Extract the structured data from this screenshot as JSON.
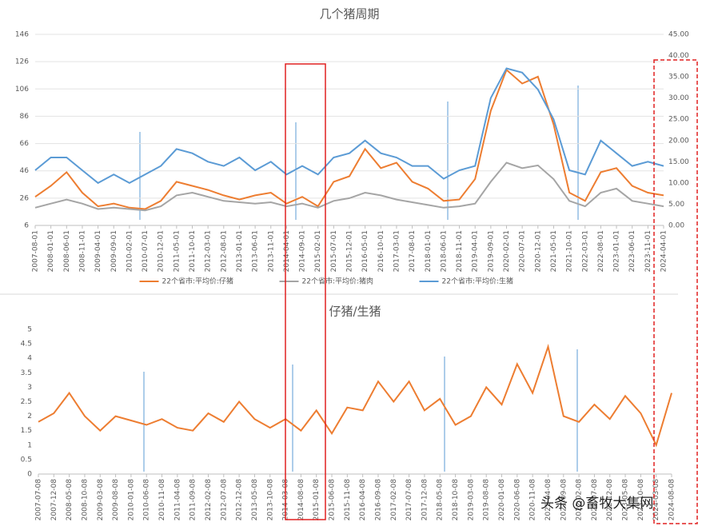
{
  "chart_data": [
    {
      "type": "line",
      "title": "几个猪周期",
      "categories": [
        "2007-08-01",
        "2008-01-01",
        "2008-06-01",
        "2008-11-01",
        "2009-04-01",
        "2009-09-01",
        "2010-02-01",
        "2010-07-01",
        "2010-12-01",
        "2011-05-01",
        "2011-10-01",
        "2012-03-01",
        "2012-08-01",
        "2013-01-01",
        "2013-06-01",
        "2013-11-01",
        "2014-04-01",
        "2014-09-01",
        "2015-02-01",
        "2015-07-01",
        "2015-12-01",
        "2016-05-01",
        "2016-10-01",
        "2017-03-01",
        "2017-08-01",
        "2018-01-01",
        "2018-06-01",
        "2018-11-01",
        "2019-04-01",
        "2019-09-01",
        "2020-02-01",
        "2020-07-01",
        "2020-12-01",
        "2021-05-01",
        "2021-10-01",
        "2022-03-01",
        "2022-08-01",
        "2023-01-01",
        "2023-06-01",
        "2023-11-01",
        "2024-04-01"
      ],
      "series": [
        {
          "name": "22个省市:平均价:仔猪",
          "color": "#ed7d31",
          "values": [
            27,
            35,
            45,
            30,
            20,
            22,
            19,
            18,
            24,
            38,
            35,
            32,
            28,
            25,
            28,
            30,
            22,
            27,
            20,
            38,
            42,
            62,
            48,
            52,
            38,
            33,
            24,
            25,
            40,
            90,
            120,
            110,
            115,
            80,
            30,
            24,
            45,
            48,
            35,
            30,
            28
          ]
        },
        {
          "name": "22个省市:平均价:猪肉",
          "color": "#a5a5a5",
          "values": [
            19,
            22,
            25,
            22,
            18,
            19,
            18,
            17,
            20,
            28,
            30,
            27,
            24,
            23,
            22,
            23,
            20,
            22,
            19,
            24,
            26,
            30,
            28,
            25,
            23,
            21,
            19,
            20,
            22,
            38,
            52,
            48,
            50,
            40,
            24,
            20,
            30,
            33,
            24,
            22,
            20
          ]
        },
        {
          "name": "22个省市:平均价:生猪",
          "color": "#5b9bd5",
          "axis": "y2",
          "values": [
            13,
            16,
            16,
            13,
            10,
            12,
            10,
            12,
            14,
            18,
            17,
            15,
            14,
            16,
            13,
            15,
            12,
            14,
            12,
            16,
            17,
            20,
            17,
            16,
            14,
            14,
            11,
            13,
            14,
            30,
            37,
            36,
            32,
            25,
            13,
            12,
            20,
            17,
            14,
            15,
            14
          ]
        }
      ],
      "ylim": [
        6,
        146
      ],
      "yticks": [
        6,
        26,
        46,
        66,
        86,
        106,
        126,
        146
      ],
      "y2lim": [
        0,
        45
      ],
      "y2ticks": [
        {
          "value": 0,
          "label": "0.00"
        },
        {
          "value": 5,
          "label": "5.00"
        },
        {
          "value": 10,
          "label": "10.00"
        },
        {
          "value": 15,
          "label": "15.00"
        },
        {
          "value": 20,
          "label": "20.00"
        },
        {
          "value": 25,
          "label": "25.00"
        },
        {
          "value": 30,
          "label": "30.00"
        },
        {
          "value": 35,
          "label": "35.00"
        },
        {
          "value": 40,
          "label": "40.00"
        },
        {
          "value": 45,
          "label": "45.00"
        }
      ],
      "grid": true,
      "legend": "bottom"
    },
    {
      "type": "line",
      "title": "仔猪/生猪",
      "categories": [
        "2007-07-08",
        "2007-12-08",
        "2008-05-08",
        "2008-10-08",
        "2009-03-08",
        "2009-08-08",
        "2010-01-08",
        "2010-06-08",
        "2010-11-08",
        "2011-04-08",
        "2011-09-08",
        "2012-02-08",
        "2012-07-08",
        "2012-12-08",
        "2013-05-08",
        "2013-10-08",
        "2014-03-08",
        "2014-08-08",
        "2015-01-08",
        "2015-06-08",
        "2015-11-08",
        "2016-04-08",
        "2016-09-08",
        "2017-02-08",
        "2017-07-08",
        "2017-12-08",
        "2018-05-08",
        "2018-10-08",
        "2019-03-08",
        "2019-08-08",
        "2020-01-08",
        "2020-06-08",
        "2020-11-08",
        "2021-04-08",
        "2021-09-08",
        "2022-02-08",
        "2022-07-08",
        "2022-12-08",
        "2023-05-08",
        "2023-10-08",
        "2024-03-08",
        "2024-08-08"
      ],
      "series": [
        {
          "color": "#ed7d31",
          "values": [
            1.8,
            2.1,
            2.8,
            2.0,
            1.5,
            2.0,
            1.85,
            1.7,
            1.9,
            1.6,
            1.5,
            2.1,
            1.8,
            2.5,
            1.9,
            1.6,
            1.9,
            1.5,
            2.2,
            1.4,
            2.3,
            2.2,
            3.2,
            2.5,
            3.2,
            2.2,
            2.6,
            1.7,
            2.0,
            3.0,
            2.4,
            3.8,
            2.8,
            4.4,
            2.0,
            1.8,
            2.4,
            1.9,
            2.7,
            2.1,
            1.0,
            2.8
          ]
        }
      ],
      "ylim": [
        0,
        5
      ],
      "yticks": [
        0,
        0.5,
        1,
        1.5,
        2,
        2.5,
        3,
        3.5,
        4,
        4.5,
        5
      ],
      "grid": false
    },
    {
      "watermark": "头条 @畜牧大集网"
    }
  ]
}
